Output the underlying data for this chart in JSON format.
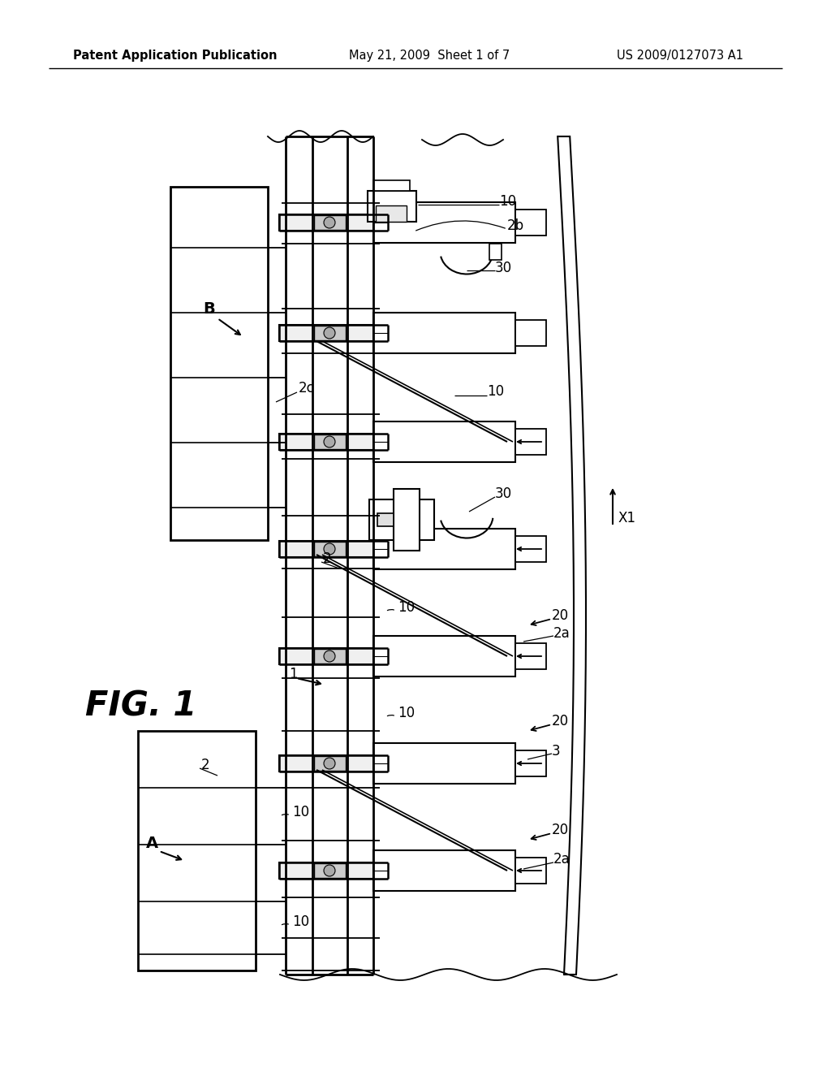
{
  "header_left": "Patent Application Publication",
  "header_center": "May 21, 2009  Sheet 1 of 7",
  "header_right": "US 2009/0127073 A1",
  "fig_label": "FIG. 1",
  "background_color": "#ffffff",
  "line_color": "#000000"
}
